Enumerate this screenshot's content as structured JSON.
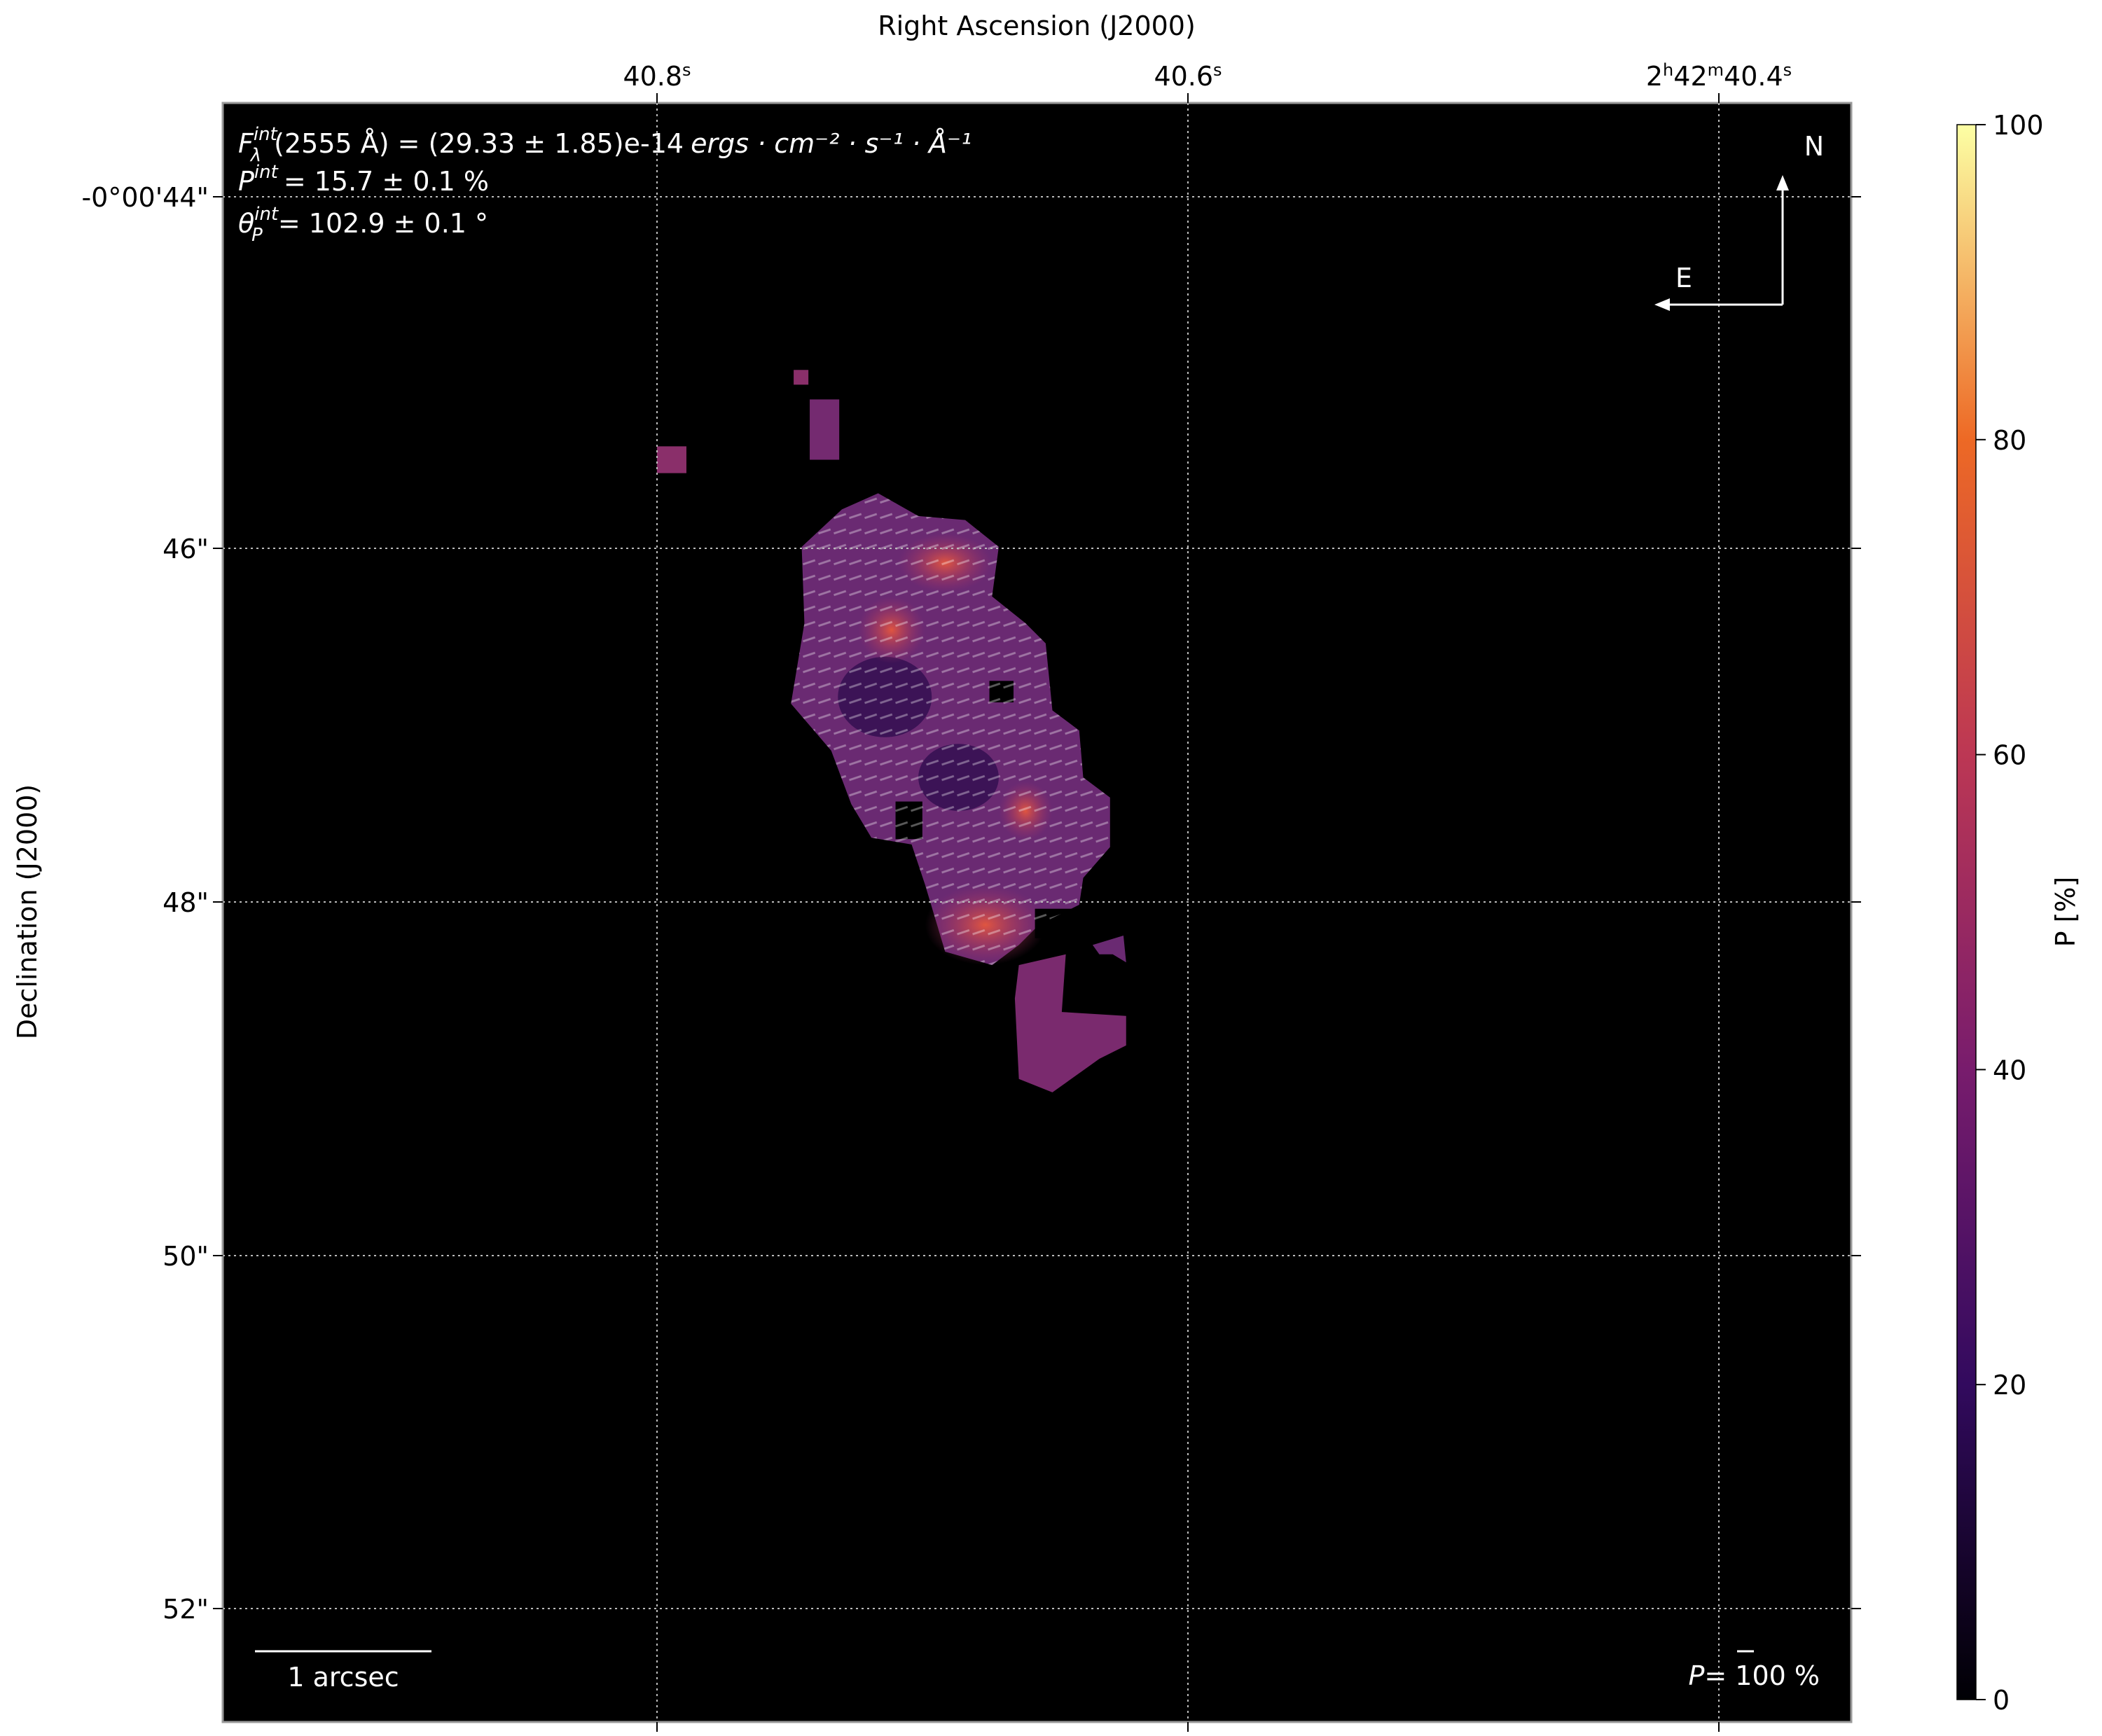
{
  "chart_data": {
    "type": "heatmap",
    "xlabel": "Right Ascension (J2000)",
    "ylabel": "Declination (J2000)",
    "x_ticks": [
      {
        "value": "40.8",
        "unit": "s",
        "prefix": ""
      },
      {
        "value": "40.6",
        "unit": "s",
        "prefix": ""
      },
      {
        "value": "40.4",
        "unit": "s",
        "prefix": "2h42m"
      }
    ],
    "y_ticks": [
      "-0°00'44\"",
      "46\"",
      "48\"",
      "50\"",
      "52\""
    ],
    "colorbar": {
      "label": "P [%]",
      "ticks": [
        "0",
        "20",
        "40",
        "60",
        "80",
        "100"
      ],
      "range": [
        0,
        100
      ],
      "colormap": "inferno",
      "colors": [
        "#000004",
        "#320a5e",
        "#781c6d",
        "#bc3754",
        "#ed6925",
        "#fcffa4"
      ]
    },
    "grid": true,
    "background": "#000000",
    "annotations": {
      "flux": {
        "symbol": "F",
        "sup": "int",
        "sub": "λ",
        "text": "(2555 Å) = (29.33 ± 1.85)e-14",
        "unit": "ergs · cm⁻² · s⁻¹ · Å⁻¹"
      },
      "pol": {
        "symbol": "P",
        "sup": "int",
        "text": "= 15.7 ± 0.1 %"
      },
      "angle": {
        "symbol": "θ",
        "sup": "int",
        "sub": "P",
        "text": "= 102.9 ± 0.1 °"
      },
      "compass_north": "N",
      "compass_east": "E",
      "scalebar": "1 arcsec",
      "vector_scale": {
        "symbol": "P",
        "text": "= 100 %"
      }
    }
  }
}
